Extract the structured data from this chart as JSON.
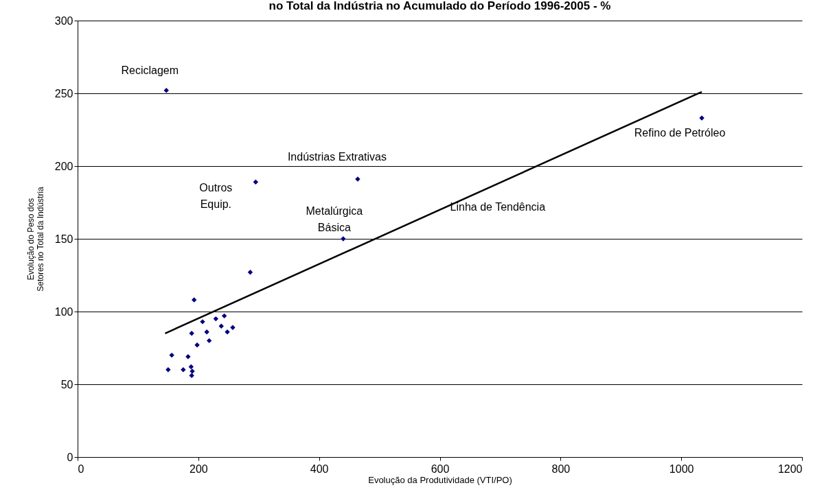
{
  "chart_data": {
    "type": "scatter",
    "title": "no Total da Indústria no Acumulado do Período 1996-2005 - %",
    "xlabel": "Evolução da Produtividade (VTI/PO)",
    "ylabel": "Evolução do Peso dos\nSetores no Total da Indústria",
    "x": [
      147,
      295,
      464,
      440,
      1034,
      286,
      193,
      207,
      229,
      243,
      238,
      214,
      189,
      248,
      257,
      218,
      198,
      156,
      183,
      150,
      175,
      188,
      190,
      189
    ],
    "series": [
      {
        "color": "#000080",
        "marker": "diamond",
        "values": [
          252,
          189,
          191,
          150,
          233,
          127,
          108,
          93,
          95,
          97,
          90,
          86,
          85,
          86,
          89,
          80,
          77,
          70,
          69,
          60,
          60,
          62,
          59,
          56
        ]
      },
      {
        "type": "line",
        "color": "#000000",
        "x": [
          145,
          1034
        ],
        "values": [
          85,
          251
        ]
      }
    ],
    "annotations": [
      {
        "text": "Reciclagem",
        "x": 147,
        "y": 252
      },
      {
        "text": "Indústrias Extrativas",
        "x": 464,
        "y": 191
      },
      {
        "text": "Outros\nEquip.",
        "x": 295,
        "y": 189
      },
      {
        "text": "Metalúrgica\nBásica",
        "x": 440,
        "y": 150
      },
      {
        "text": "Linha de Tendência",
        "x": 680,
        "y": 185
      },
      {
        "text": "Refino de Petróleo",
        "x": 1034,
        "y": 233
      }
    ],
    "xlim": [
      0,
      1200
    ],
    "xticks": [
      0,
      200,
      400,
      600,
      800,
      1000,
      1200
    ],
    "ylim": [
      0,
      300
    ],
    "yticks": [
      0,
      50,
      100,
      150,
      200,
      250,
      300
    ],
    "grid": "y"
  }
}
